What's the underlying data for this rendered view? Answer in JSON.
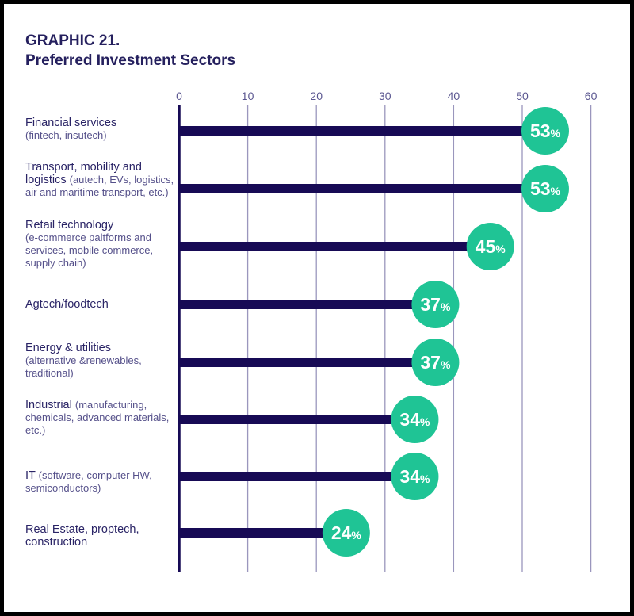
{
  "chart_data": {
    "type": "bar",
    "orientation": "horizontal",
    "title": "GRAPHIC 21.",
    "subtitle": "Preferred Investment Sectors",
    "xlim": [
      0,
      60
    ],
    "xticks": [
      0,
      10,
      20,
      30,
      40,
      50,
      60
    ],
    "grid": true,
    "categories": [
      {
        "main": "Financial services",
        "sub": "(fintech, insutech)",
        "sub_newline": true
      },
      {
        "main": "Transport, mobility and logistics",
        "sub": "(autech, EVs, logistics, air and maritime transport, etc.)",
        "sub_newline": false
      },
      {
        "main": "Retail technology",
        "sub": "(e-commerce paltforms and services, mobile commerce, supply chain)",
        "sub_newline": true
      },
      {
        "main": "Agtech/foodtech",
        "sub": "",
        "sub_newline": false
      },
      {
        "main": "Energy & utilities",
        "sub": "(alternative &renewables, traditional)",
        "sub_newline": true
      },
      {
        "main": "Industrial",
        "sub": "(manufacturing, chemicals, advanced materials, etc.)",
        "sub_newline": false
      },
      {
        "main": "IT",
        "sub": "(software, computer HW, semiconductors)",
        "sub_newline": false
      },
      {
        "main": "Real Estate, proptech, construction",
        "sub": "",
        "sub_newline": false
      }
    ],
    "values": [
      53,
      53,
      45,
      37,
      37,
      34,
      34,
      24
    ],
    "value_suffix": "%",
    "colors": {
      "bar": "#170a55",
      "badge": "#1fc495",
      "grid": "#9a96bd",
      "axis_text": "#5a5690"
    }
  }
}
